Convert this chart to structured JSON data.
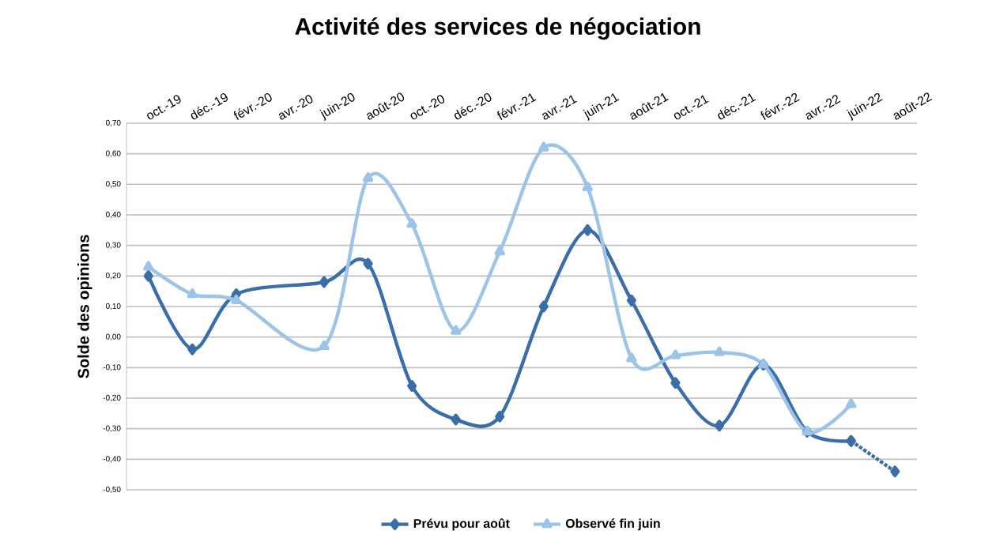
{
  "chart_data": {
    "type": "line",
    "title": "Activité des services de négociation",
    "ylabel": "Solde des opinions",
    "categories": [
      "oct.-19",
      "déc.-19",
      "févr.-20",
      "avr.-20",
      "juin-20",
      "août-20",
      "oct.-20",
      "déc.-20",
      "févr.-21",
      "avr.-21",
      "juin-21",
      "août-21",
      "oct.-21",
      "déc.-21",
      "févr.-22",
      "avr.-22",
      "juin-22",
      "août-22"
    ],
    "series": [
      {
        "name": "Prévu pour août",
        "color": "#3b6ea8",
        "marker": "diamond",
        "line_style": "solid",
        "values": [
          0.2,
          -0.04,
          0.14,
          null,
          0.18,
          0.24,
          -0.16,
          -0.27,
          -0.26,
          0.1,
          0.35,
          0.12,
          -0.15,
          -0.29,
          -0.09,
          -0.31,
          -0.34,
          null
        ]
      },
      {
        "name": "Observé fin juin",
        "color": "#9cc3e8",
        "marker": "triangle",
        "line_style": "solid",
        "values": [
          0.23,
          0.14,
          0.12,
          null,
          -0.03,
          0.52,
          0.37,
          0.02,
          0.28,
          0.62,
          0.49,
          -0.07,
          -0.06,
          -0.05,
          -0.09,
          -0.31,
          -0.22,
          null
        ]
      },
      {
        "color": "#3b6ea8",
        "marker": "diamond",
        "line_style": "dotted",
        "values": [
          null,
          null,
          null,
          null,
          null,
          null,
          null,
          null,
          null,
          null,
          null,
          null,
          null,
          null,
          null,
          null,
          -0.34,
          -0.44
        ]
      }
    ],
    "ylim": [
      -0.5,
      0.7
    ],
    "yticks": [
      {
        "value": -0.5,
        "label": "-0,50"
      },
      {
        "value": -0.4,
        "label": "-0,40"
      },
      {
        "value": -0.3,
        "label": "-0,30"
      },
      {
        "value": -0.2,
        "label": "-0,20"
      },
      {
        "value": -0.1,
        "label": "-0,10"
      },
      {
        "value": 0,
        "label": "0,00"
      },
      {
        "value": 0.1,
        "label": "0,10"
      },
      {
        "value": 0.2,
        "label": "0,20"
      },
      {
        "value": 0.3,
        "label": "0,30"
      },
      {
        "value": 0.4,
        "label": "0,40"
      },
      {
        "value": 0.5,
        "label": "0,50"
      },
      {
        "value": 0.6,
        "label": "0,60"
      },
      {
        "value": 0.7,
        "label": "0,70"
      }
    ],
    "grid": "y",
    "legend": "bottom"
  }
}
